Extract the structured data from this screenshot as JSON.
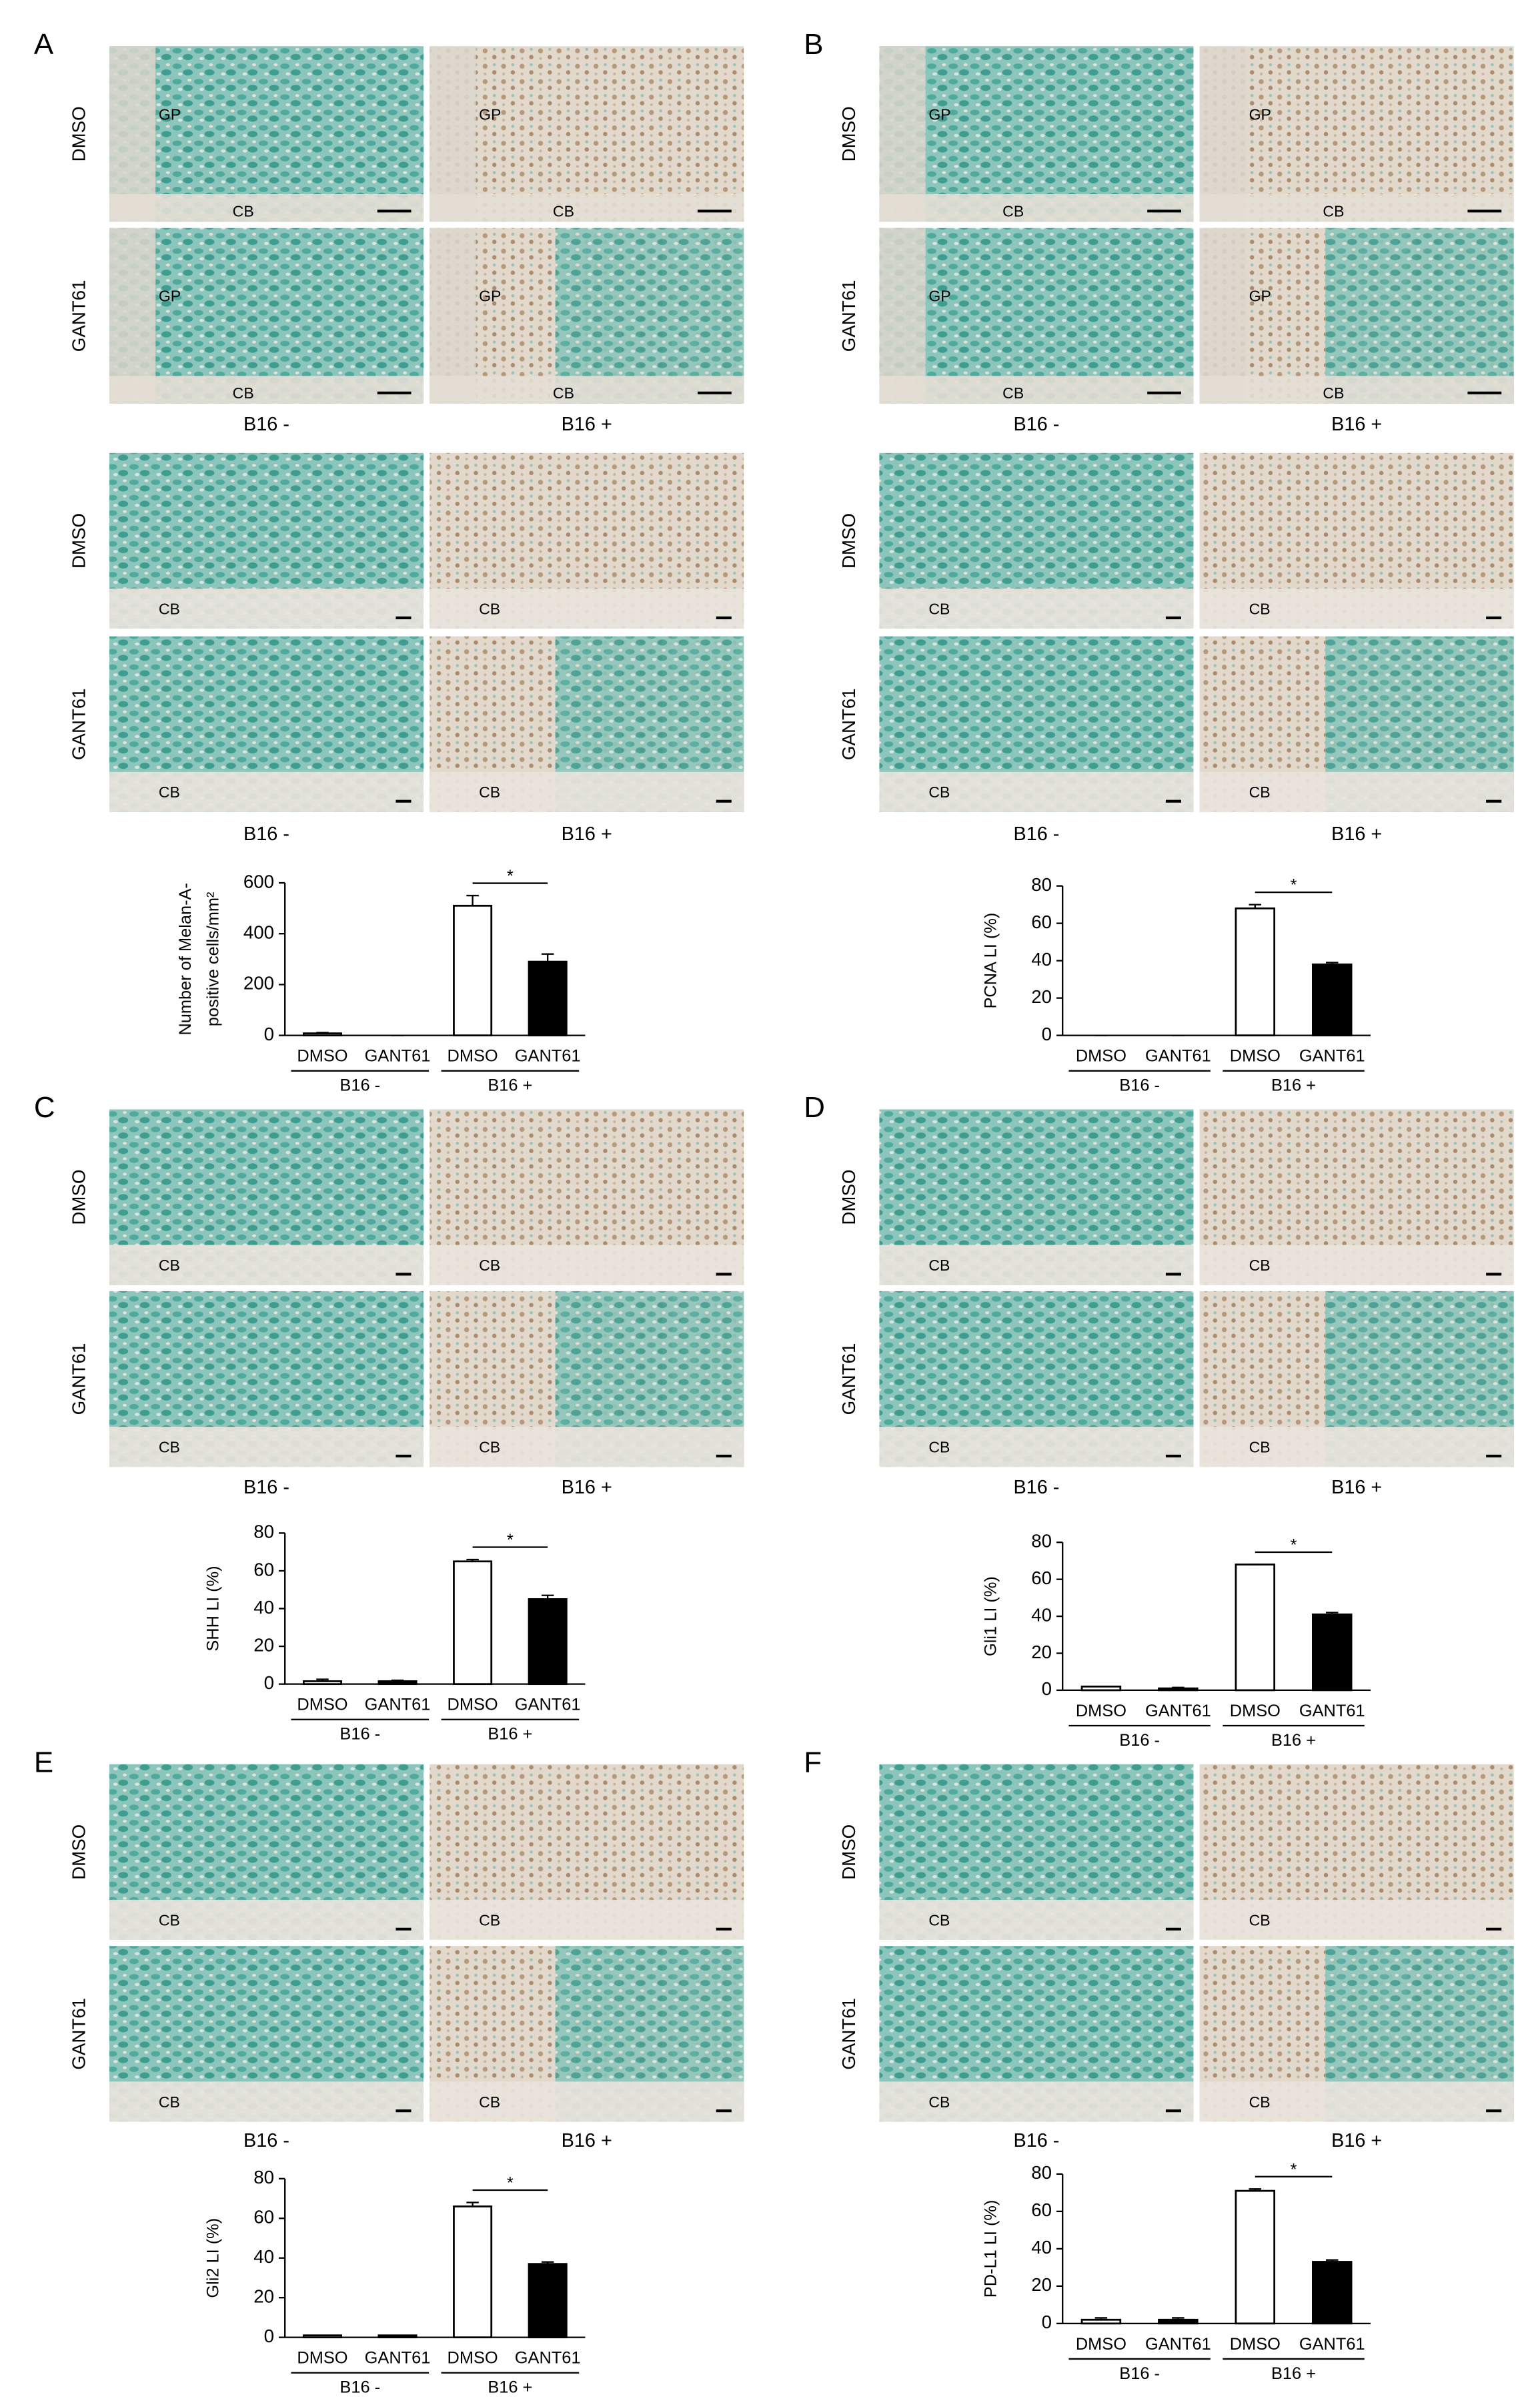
{
  "panels": [
    {
      "letter": "A",
      "blocks": [
        {
          "rows": [
            "DMSO",
            "GANT61"
          ],
          "cols": [
            "B16 -",
            "B16 +"
          ],
          "images": [
            [
              "GP",
              "CB"
            ],
            [
              "GP",
              "CB"
            ],
            [
              "GP",
              "CB"
            ],
            [
              "GP",
              "CB"
            ]
          ]
        },
        {
          "rows": [
            "DMSO",
            "GANT61"
          ],
          "cols": [
            "B16 -",
            "B16 +"
          ],
          "images": [
            [
              "CB"
            ],
            [
              "CB"
            ],
            [
              "CB"
            ],
            [
              "CB"
            ]
          ]
        }
      ]
    },
    {
      "letter": "B",
      "blocks": [
        {
          "rows": [
            "DMSO",
            "GANT61"
          ],
          "cols": [
            "B16 -",
            "B16 +"
          ],
          "images": [
            [
              "GP",
              "CB"
            ],
            [
              "GP",
              "CB"
            ],
            [
              "GP",
              "CB"
            ],
            [
              "GP",
              "CB"
            ]
          ]
        },
        {
          "rows": [
            "DMSO",
            "GANT61"
          ],
          "cols": [
            "B16 -",
            "B16 +"
          ],
          "images": [
            [
              "CB"
            ],
            [
              "CB"
            ],
            [
              "CB"
            ],
            [
              "CB"
            ]
          ]
        }
      ]
    },
    {
      "letter": "C",
      "blocks": [
        {
          "rows": [
            "DMSO",
            "GANT61"
          ],
          "cols": [
            "B16 -",
            "B16 +"
          ],
          "images": [
            [
              "CB"
            ],
            [
              "CB"
            ],
            [
              "CB"
            ],
            [
              "CB"
            ]
          ]
        }
      ]
    },
    {
      "letter": "D",
      "blocks": [
        {
          "rows": [
            "DMSO",
            "GANT61"
          ],
          "cols": [
            "B16 -",
            "B16 +"
          ],
          "images": [
            [
              "CB"
            ],
            [
              "CB"
            ],
            [
              "CB"
            ],
            [
              "CB"
            ]
          ]
        }
      ]
    },
    {
      "letter": "E",
      "blocks": [
        {
          "rows": [
            "DMSO",
            "GANT61"
          ],
          "cols": [
            "B16 -",
            "B16 +"
          ],
          "images": [
            [
              "CB"
            ],
            [
              "CB"
            ],
            [
              "CB"
            ],
            [
              "CB"
            ]
          ]
        }
      ]
    },
    {
      "letter": "F",
      "blocks": [
        {
          "rows": [
            "DMSO",
            "GANT61"
          ],
          "cols": [
            "B16 -",
            "B16 +"
          ],
          "images": [
            [
              "CB"
            ],
            [
              "CB"
            ],
            [
              "CB"
            ],
            [
              "CB"
            ]
          ]
        }
      ]
    }
  ],
  "chart_data": [
    {
      "type": "bar",
      "y_label": [
        "Number of Melan-A-",
        "positive cells/mm²"
      ],
      "categories": [
        "DMSO",
        "GANT61",
        "DMSO",
        "GANT61"
      ],
      "groups": [
        "B16 -",
        "B16 +"
      ],
      "values": [
        8,
        0,
        510,
        290
      ],
      "errors": [
        3,
        0,
        40,
        30
      ],
      "colors": [
        "#ffffff",
        "#000000",
        "#ffffff",
        "#000000"
      ],
      "ylim": [
        0,
        600
      ],
      "yticks": [
        0,
        200,
        400,
        600
      ],
      "significance": "*"
    },
    {
      "type": "bar",
      "y_label": [
        "PCNA LI (%)"
      ],
      "categories": [
        "DMSO",
        "GANT61",
        "DMSO",
        "GANT61"
      ],
      "groups": [
        "B16 -",
        "B16 +"
      ],
      "values": [
        0,
        0,
        68,
        38
      ],
      "errors": [
        0,
        0,
        2,
        1
      ],
      "colors": [
        "#ffffff",
        "#000000",
        "#ffffff",
        "#000000"
      ],
      "ylim": [
        0,
        80
      ],
      "yticks": [
        0,
        20,
        40,
        60,
        80
      ],
      "significance": "*"
    },
    {
      "type": "bar",
      "y_label": [
        "SHH LI (%)"
      ],
      "categories": [
        "DMSO",
        "GANT61",
        "DMSO",
        "GANT61"
      ],
      "groups": [
        "B16 -",
        "B16 +"
      ],
      "values": [
        1.5,
        1.5,
        65,
        45
      ],
      "errors": [
        1,
        0.5,
        1,
        2
      ],
      "colors": [
        "#ffffff",
        "#000000",
        "#ffffff",
        "#000000"
      ],
      "ylim": [
        0,
        80
      ],
      "yticks": [
        0,
        20,
        40,
        60,
        80
      ],
      "significance": "*"
    },
    {
      "type": "bar",
      "y_label": [
        "Gli1 LI (%)"
      ],
      "categories": [
        "DMSO",
        "GANT61",
        "DMSO",
        "GANT61"
      ],
      "groups": [
        "B16 -",
        "B16 +"
      ],
      "values": [
        2,
        1,
        68,
        41
      ],
      "errors": [
        0,
        0.5,
        0,
        1
      ],
      "colors": [
        "#ffffff",
        "#000000",
        "#ffffff",
        "#000000"
      ],
      "ylim": [
        0,
        80
      ],
      "yticks": [
        0,
        20,
        40,
        60,
        80
      ],
      "significance": "*"
    },
    {
      "type": "bar",
      "y_label": [
        "Gli2 LI (%)"
      ],
      "categories": [
        "DMSO",
        "GANT61",
        "DMSO",
        "GANT61"
      ],
      "groups": [
        "B16 -",
        "B16 +"
      ],
      "values": [
        1,
        1,
        66,
        37
      ],
      "errors": [
        0,
        0,
        2,
        1
      ],
      "colors": [
        "#ffffff",
        "#000000",
        "#ffffff",
        "#000000"
      ],
      "ylim": [
        0,
        80
      ],
      "yticks": [
        0,
        20,
        40,
        60,
        80
      ],
      "significance": "*"
    },
    {
      "type": "bar",
      "y_label": [
        "PD-L1 LI (%)"
      ],
      "categories": [
        "DMSO",
        "GANT61",
        "DMSO",
        "GANT61"
      ],
      "groups": [
        "B16 -",
        "B16 +"
      ],
      "values": [
        2,
        2,
        71,
        33
      ],
      "errors": [
        1,
        1,
        1,
        1
      ],
      "colors": [
        "#ffffff",
        "#000000",
        "#ffffff",
        "#000000"
      ],
      "ylim": [
        0,
        80
      ],
      "yticks": [
        0,
        20,
        40,
        60,
        80
      ],
      "significance": "*"
    }
  ]
}
